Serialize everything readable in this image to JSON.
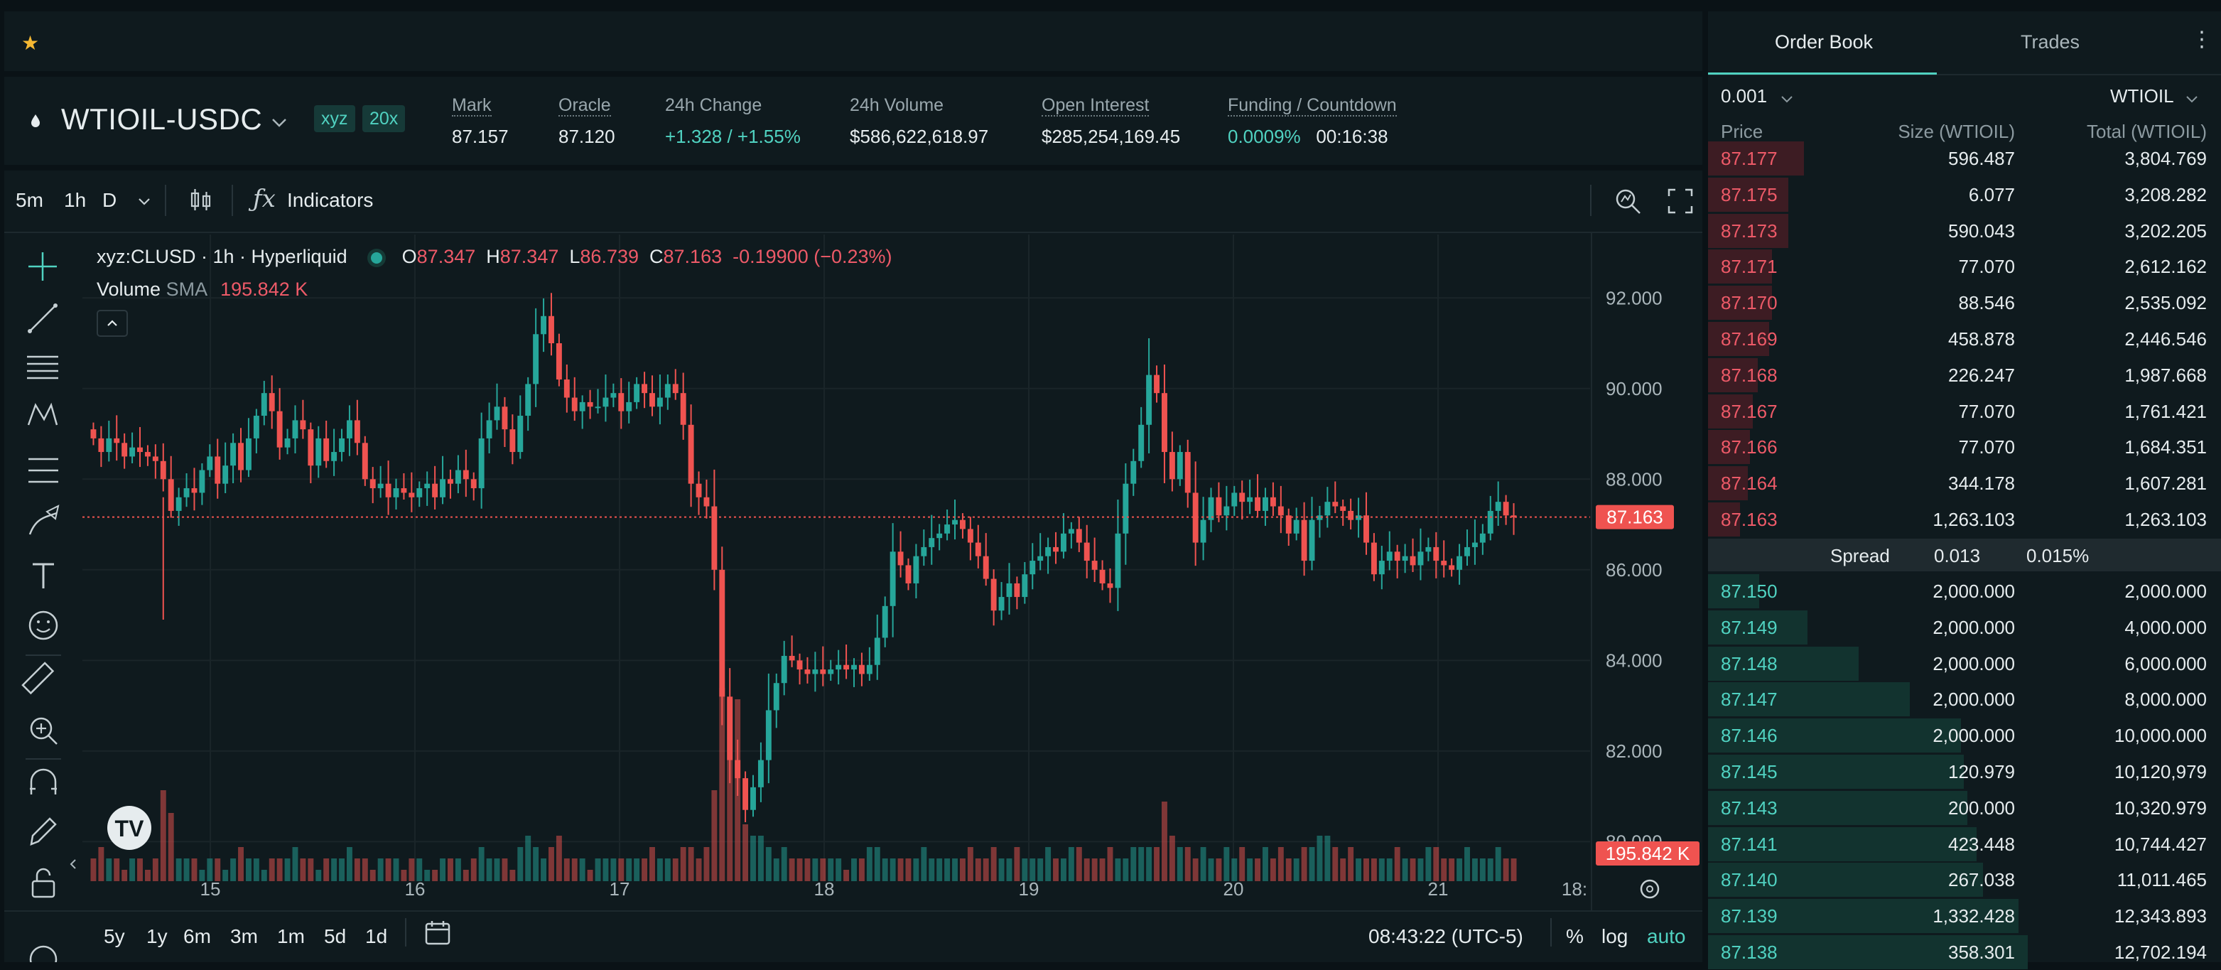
{
  "top": {
    "star_icon": "star-icon"
  },
  "ticker": {
    "symbol": "WTIOIL-USDC",
    "tags": [
      "xyz",
      "20x"
    ],
    "stats": [
      {
        "label": "Mark",
        "value": "87.157",
        "dashed": true,
        "color": "#e6ecee"
      },
      {
        "label": "Oracle",
        "value": "87.120",
        "dashed": true,
        "color": "#e6ecee"
      },
      {
        "label": "24h Change",
        "value": "+1.328 / +1.55%",
        "dashed": false,
        "color": "#50d2c1"
      },
      {
        "label": "24h Volume",
        "value": "$586,622,618.97",
        "dashed": false,
        "color": "#e6ecee"
      },
      {
        "label": "Open Interest",
        "value": "$285,254,169.45",
        "dashed": true,
        "color": "#e6ecee"
      }
    ],
    "funding": {
      "label": "Funding / Countdown",
      "rate": "0.0009%",
      "countdown": "00:16:38"
    }
  },
  "chart_toolbar": {
    "timeframes": [
      "5m",
      "1h",
      "D"
    ],
    "active_timeframe": "1h",
    "indicators_label": "Indicators"
  },
  "chart_legend": {
    "title": "xyz:CLUSD · 1h · Hyperliquid",
    "o_label": "O",
    "o": "87.347",
    "h_label": "H",
    "h": "87.347",
    "l_label": "L",
    "l": "86.739",
    "c_label": "C",
    "c": "87.163",
    "change": "-0.19900 (−0.23%)",
    "volume_label": "Volume",
    "sma_label": "SMA",
    "volume_value": "195.842 K"
  },
  "chart_data": {
    "type": "candlestick",
    "y_ticks": [
      "92.000",
      "90.000",
      "88.000",
      "86.000",
      "84.000",
      "82.000",
      "80.000"
    ],
    "y_range": [
      78.5,
      93.4
    ],
    "x_ticks": [
      "15",
      "16",
      "17",
      "18",
      "19",
      "20",
      "21",
      "18:"
    ],
    "last_price": "87.163",
    "last_volume": "195.842 K",
    "close_series": [
      88.9,
      88.6,
      88.9,
      88.8,
      88.5,
      88.7,
      88.6,
      88.5,
      88.4,
      88.0,
      87.3,
      87.6,
      87.8,
      87.7,
      88.2,
      88.5,
      87.9,
      88.3,
      88.8,
      88.2,
      88.9,
      89.4,
      89.9,
      89.5,
      88.7,
      88.9,
      89.3,
      89.1,
      88.3,
      88.9,
      88.4,
      88.6,
      88.9,
      89.3,
      88.8,
      88.0,
      87.8,
      87.9,
      87.6,
      87.8,
      87.7,
      87.6,
      87.8,
      87.9,
      87.6,
      88.0,
      87.9,
      88.2,
      88.0,
      87.8,
      88.9,
      89.3,
      89.6,
      89.1,
      88.6,
      89.4,
      90.1,
      91.2,
      91.6,
      91.0,
      90.2,
      89.8,
      89.5,
      89.7,
      89.6,
      89.6,
      89.8,
      89.9,
      89.5,
      89.7,
      90.1,
      89.9,
      89.6,
      89.8,
      90.1,
      89.9,
      89.2,
      87.9,
      87.6,
      87.4,
      86.0,
      83.2,
      81.8,
      81.4,
      80.7,
      81.2,
      81.8,
      82.9,
      83.5,
      84.1,
      84.0,
      83.8,
      83.7,
      83.8,
      83.7,
      83.8,
      83.9,
      83.8,
      83.9,
      83.7,
      83.9,
      84.5,
      85.2,
      86.4,
      86.1,
      85.7,
      86.3,
      86.5,
      86.7,
      86.8,
      87.0,
      87.1,
      86.9,
      86.6,
      86.3,
      85.8,
      85.1,
      85.4,
      85.7,
      85.4,
      85.9,
      86.2,
      86.3,
      86.5,
      86.4,
      86.8,
      86.9,
      86.6,
      86.2,
      86.0,
      85.7,
      85.6,
      86.8,
      87.9,
      88.4,
      89.2,
      90.3,
      89.9,
      88.6,
      88.0,
      88.6,
      87.7,
      86.6,
      87.1,
      87.6,
      87.2,
      87.4,
      87.7,
      87.5,
      87.6,
      87.3,
      87.6,
      87.4,
      87.2,
      86.8,
      87.1,
      86.2,
      87.1,
      87.2,
      87.5,
      87.4,
      87.3,
      87.1,
      87.2,
      86.6,
      85.9,
      86.2,
      86.4,
      86.2,
      86.3,
      86.1,
      86.4,
      86.5,
      86.2,
      86.1,
      86.0,
      86.3,
      86.5,
      86.6,
      86.8,
      87.3,
      87.5,
      87.2,
      87.16
    ],
    "volume_series": [
      2,
      3,
      2,
      2,
      1,
      2,
      2,
      1,
      2,
      8,
      6,
      2,
      2,
      2,
      1,
      2,
      2,
      1,
      2,
      3,
      2,
      2,
      1,
      2,
      2,
      2,
      3,
      2,
      2,
      1,
      2,
      2,
      2,
      3,
      2,
      2,
      1,
      2,
      2,
      2,
      1,
      2,
      2,
      1,
      1,
      2,
      2,
      2,
      1,
      2,
      3,
      2,
      2,
      2,
      1,
      3,
      4,
      3,
      2,
      3,
      4,
      2,
      2,
      2,
      1,
      2,
      2,
      2,
      2,
      2,
      2,
      2,
      3,
      2,
      2,
      2,
      3,
      3,
      2,
      3,
      8,
      17,
      16,
      16,
      5,
      4,
      4,
      3,
      2,
      3,
      2,
      2,
      2,
      2,
      2,
      2,
      2,
      1,
      2,
      2,
      3,
      3,
      2,
      2,
      2,
      2,
      2,
      3,
      2,
      2,
      2,
      2,
      2,
      3,
      2,
      2,
      3,
      2,
      2,
      3,
      2,
      2,
      2,
      3,
      2,
      2,
      3,
      3,
      2,
      2,
      2,
      3,
      2,
      2,
      3,
      3,
      3,
      3,
      7,
      4,
      3,
      3,
      2,
      3,
      2,
      2,
      3,
      2,
      3,
      2,
      2,
      3,
      2,
      3,
      2,
      2,
      3,
      3,
      4,
      4,
      3,
      2,
      3,
      2,
      2,
      2,
      2,
      2,
      3,
      2,
      2,
      2,
      3,
      3,
      2,
      2,
      2,
      3,
      2,
      2,
      2,
      3,
      2,
      2,
      3,
      3,
      2,
      2
    ]
  },
  "chart_footer": {
    "ranges": [
      "5y",
      "1y",
      "6m",
      "3m",
      "1m",
      "5d",
      "1d"
    ],
    "time": "08:43:22 (UTC-5)",
    "percent": "%",
    "log": "log",
    "auto": "auto"
  },
  "book": {
    "tabs": [
      "Order Book",
      "Trades"
    ],
    "tick": "0.001",
    "unit": "WTIOIL",
    "headers": {
      "price": "Price",
      "size": "Size (WTIOIL)",
      "total": "Total (WTIOIL)"
    },
    "asks": [
      [
        "87.177",
        "596.487",
        "3,804.769",
        0.3
      ],
      [
        "87.175",
        "6.077",
        "3,208.282",
        0.25
      ],
      [
        "87.173",
        "590.043",
        "3,202.205",
        0.25
      ],
      [
        "87.171",
        "77.070",
        "2,612.162",
        0.2
      ],
      [
        "87.170",
        "88.546",
        "2,535.092",
        0.2
      ],
      [
        "87.169",
        "458.878",
        "2,446.546",
        0.19
      ],
      [
        "87.168",
        "226.247",
        "1,987.668",
        0.155
      ],
      [
        "87.167",
        "77.070",
        "1,761.421",
        0.14
      ],
      [
        "87.166",
        "77.070",
        "1,684.351",
        0.13
      ],
      [
        "87.164",
        "344.178",
        "1,607.281",
        0.125
      ],
      [
        "87.163",
        "1,263.103",
        "1,263.103",
        0.1
      ]
    ],
    "spread": {
      "label": "Spread",
      "value": "0.013",
      "pct": "0.015%"
    },
    "bids": [
      [
        "87.150",
        "2,000.000",
        "2,000.000",
        0.16
      ],
      [
        "87.149",
        "2,000.000",
        "4,000.000",
        0.31
      ],
      [
        "87.148",
        "2,000.000",
        "6,000.000",
        0.47
      ],
      [
        "87.147",
        "2,000.000",
        "8,000.000",
        0.63
      ],
      [
        "87.146",
        "2,000.000",
        "10,000.000",
        0.79
      ],
      [
        "87.145",
        "120.979",
        "10,120,979",
        0.8
      ],
      [
        "87.143",
        "200.000",
        "10,320.979",
        0.81
      ],
      [
        "87.141",
        "423.448",
        "10,744.427",
        0.84
      ],
      [
        "87.140",
        "267.038",
        "11,011.465",
        0.86
      ],
      [
        "87.139",
        "1,332.428",
        "12,343.893",
        0.97
      ],
      [
        "87.138",
        "358.301",
        "12,702.194",
        1.0
      ]
    ]
  },
  "colors": {
    "up": "#26a69a",
    "down": "#ef5350",
    "accent": "#50d2c1",
    "ask_bg": "#3d1c23",
    "bid_bg": "#12332f"
  }
}
